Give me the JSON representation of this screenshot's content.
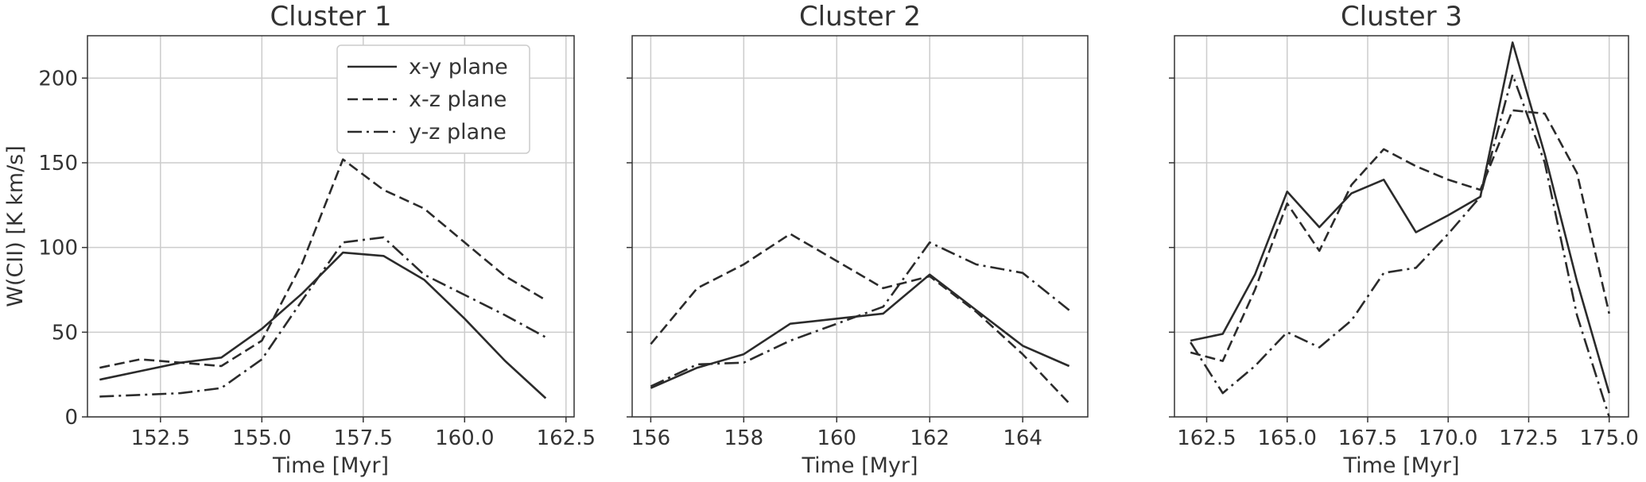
{
  "chart_data": [
    {
      "type": "line",
      "title": "Cluster 1",
      "xlabel": "Time [Myr]",
      "ylabel": "W(CII) [K km/s]",
      "xlim": [
        150.7,
        162.7
      ],
      "ylim": [
        0,
        225
      ],
      "xticks": [
        "152.5",
        "155.0",
        "157.5",
        "160.0",
        "162.5"
      ],
      "xtick_values": [
        152.5,
        155.0,
        157.5,
        160.0,
        162.5
      ],
      "yticks": [
        "0",
        "50",
        "100",
        "150",
        "200"
      ],
      "ytick_values": [
        0,
        50,
        100,
        150,
        200
      ],
      "grid": true,
      "legend": "top-right",
      "series": [
        {
          "name": "x-y plane",
          "style": "solid",
          "x": [
            151,
            152,
            153,
            154,
            155,
            156,
            157,
            158,
            159,
            160,
            161,
            162
          ],
          "values": [
            22,
            27,
            32,
            35,
            52,
            73,
            97,
            95,
            81,
            58,
            33,
            11
          ]
        },
        {
          "name": "x-z plane",
          "style": "dashed",
          "x": [
            151,
            152,
            153,
            154,
            155,
            156,
            157,
            158,
            159,
            160,
            161,
            162
          ],
          "values": [
            29,
            34,
            32,
            30,
            45,
            91,
            152,
            134,
            123,
            103,
            83,
            69
          ]
        },
        {
          "name": "y-z plane",
          "style": "dashdot",
          "x": [
            151,
            152,
            153,
            154,
            155,
            156,
            157,
            158,
            159,
            160,
            161,
            162
          ],
          "values": [
            12,
            13,
            14,
            17,
            34,
            69,
            103,
            106,
            84,
            72,
            60,
            47
          ]
        }
      ]
    },
    {
      "type": "line",
      "title": "Cluster 2",
      "xlabel": "Time [Myr]",
      "ylabel": "",
      "xlim": [
        155.6,
        165.4
      ],
      "ylim": [
        0,
        225
      ],
      "xticks": [
        "156",
        "158",
        "160",
        "162",
        "164"
      ],
      "xtick_values": [
        156,
        158,
        160,
        162,
        164
      ],
      "yticks": [],
      "ytick_values": [
        0,
        50,
        100,
        150,
        200
      ],
      "grid": true,
      "series": [
        {
          "name": "x-y plane",
          "style": "solid",
          "x": [
            156,
            157,
            158,
            159,
            160,
            161,
            162,
            163,
            164,
            165
          ],
          "values": [
            17,
            29,
            37,
            55,
            58,
            61,
            84,
            63,
            42,
            30
          ]
        },
        {
          "name": "x-z plane",
          "style": "dashed",
          "x": [
            156,
            157,
            158,
            159,
            160,
            161,
            162,
            163,
            164,
            165
          ],
          "values": [
            43,
            76,
            90,
            108,
            92,
            76,
            83,
            62,
            37,
            8
          ]
        },
        {
          "name": "y-z plane",
          "style": "dashdot",
          "x": [
            156,
            157,
            158,
            159,
            160,
            161,
            162,
            163,
            164,
            165
          ],
          "values": [
            18,
            31,
            32,
            45,
            55,
            65,
            103,
            90,
            85,
            63
          ]
        }
      ]
    },
    {
      "type": "line",
      "title": "Cluster 3",
      "xlabel": "Time [Myr]",
      "ylabel": "",
      "xlim": [
        161.5,
        175.6
      ],
      "ylim": [
        0,
        225
      ],
      "xticks": [
        "162.5",
        "165.0",
        "167.5",
        "170.0",
        "172.5",
        "175.0"
      ],
      "xtick_values": [
        162.5,
        165.0,
        167.5,
        170.0,
        172.5,
        175.0
      ],
      "yticks": [],
      "ytick_values": [
        0,
        50,
        100,
        150,
        200
      ],
      "grid": true,
      "series": [
        {
          "name": "x-y plane",
          "style": "solid",
          "x": [
            162,
            163,
            164,
            165,
            166,
            167,
            168,
            169,
            170,
            171,
            172,
            173,
            174,
            175
          ],
          "values": [
            45,
            49,
            84,
            133,
            112,
            132,
            140,
            109,
            119,
            130,
            221,
            155,
            80,
            14
          ]
        },
        {
          "name": "x-z plane",
          "style": "dashed",
          "x": [
            162,
            163,
            164,
            165,
            166,
            167,
            168,
            169,
            170,
            171,
            172,
            173,
            174,
            175
          ],
          "values": [
            38,
            33,
            75,
            126,
            98,
            137,
            158,
            148,
            140,
            134,
            181,
            179,
            144,
            61
          ]
        },
        {
          "name": "y-z plane",
          "style": "dashdot",
          "x": [
            162,
            163,
            164,
            165,
            166,
            167,
            168,
            169,
            170,
            171,
            172,
            173,
            174,
            175
          ],
          "values": [
            44,
            14,
            30,
            50,
            41,
            57,
            85,
            88,
            108,
            130,
            202,
            150,
            60,
            0
          ]
        }
      ]
    }
  ]
}
